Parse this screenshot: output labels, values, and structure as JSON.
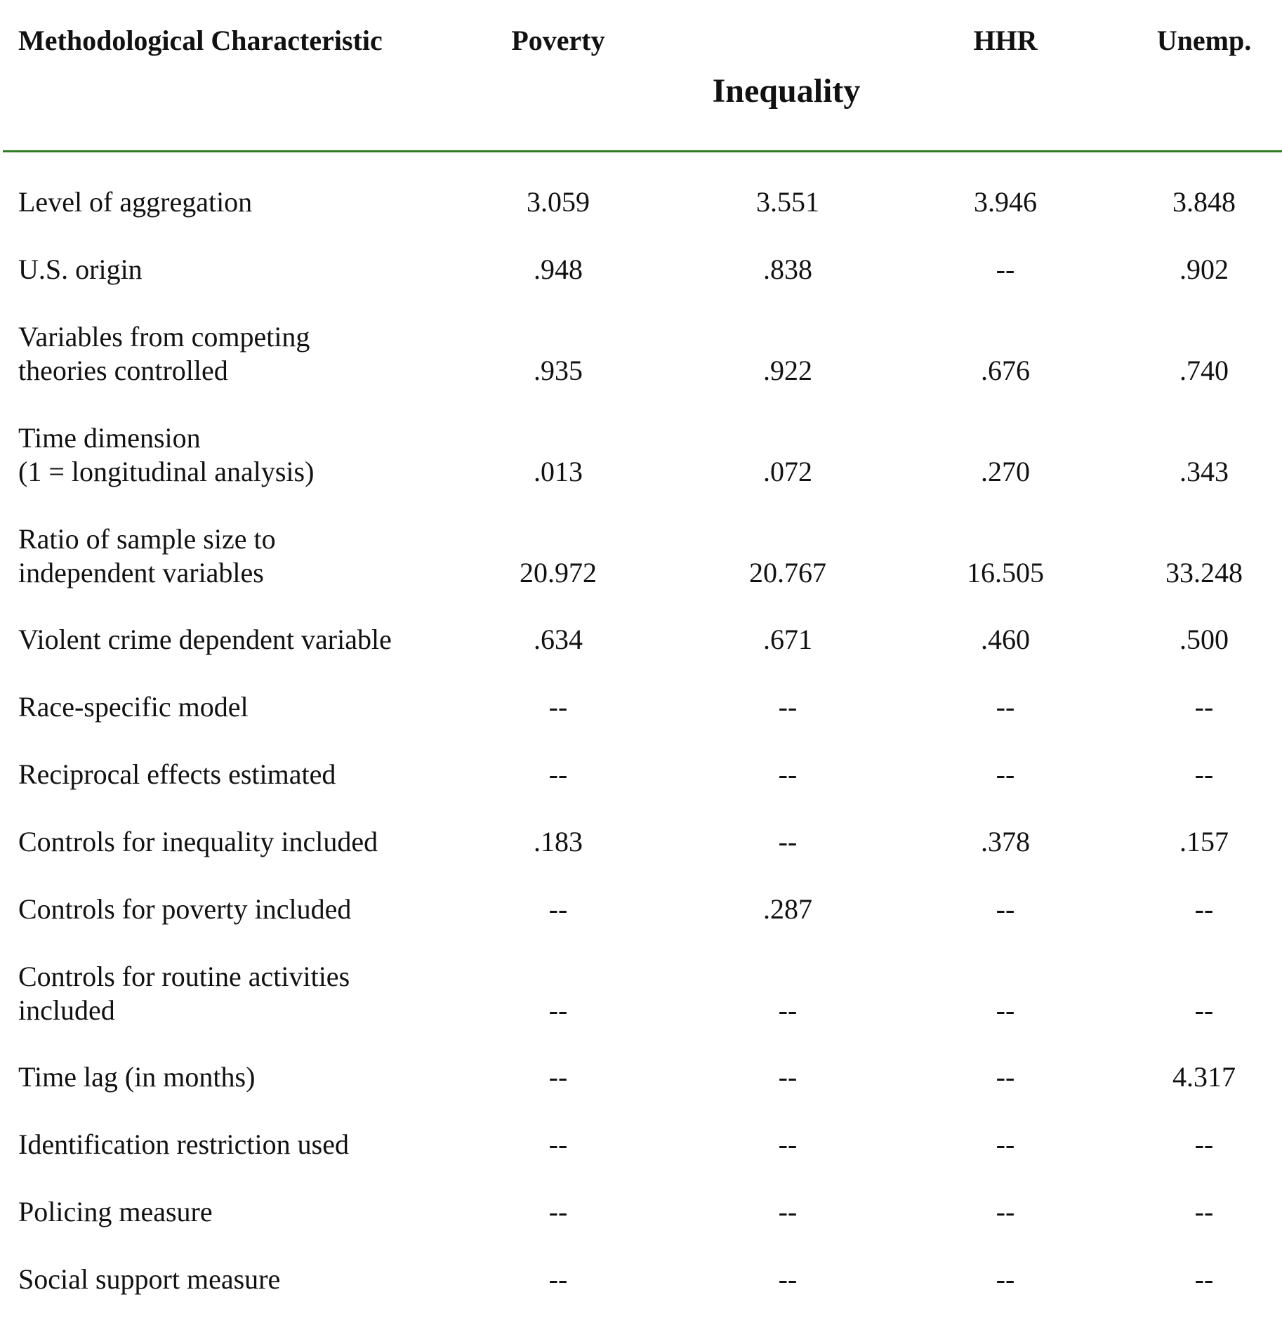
{
  "header": {
    "method": "Methodological Characteristic",
    "poverty": "Poverty",
    "inequality": "Inequality",
    "hhr": "HHR",
    "unemp": "Unemp."
  },
  "rows": [
    {
      "label": [
        "Level of aggregation"
      ],
      "values": [
        "3.059",
        "3.551",
        "3.946",
        "3.848"
      ]
    },
    {
      "label": [
        "U.S. origin"
      ],
      "values": [
        ".948",
        ".838",
        "--",
        ".902"
      ]
    },
    {
      "label": [
        "Variables from competing",
        "theories controlled"
      ],
      "values": [
        ".935",
        ".922",
        ".676",
        ".740"
      ]
    },
    {
      "label": [
        "Time dimension",
        "(1 = longitudinal analysis)"
      ],
      "values": [
        ".013",
        ".072",
        ".270",
        ".343"
      ]
    },
    {
      "label": [
        "Ratio of sample size to",
        "independent variables"
      ],
      "values": [
        "20.972",
        "20.767",
        "16.505",
        "33.248"
      ]
    },
    {
      "label": [
        "Violent crime dependent variable"
      ],
      "values": [
        ".634",
        ".671",
        ".460",
        ".500"
      ]
    },
    {
      "label": [
        "Race-specific model"
      ],
      "values": [
        "--",
        "--",
        "--",
        "--"
      ]
    },
    {
      "label": [
        "Reciprocal effects estimated"
      ],
      "values": [
        "--",
        "--",
        "--",
        "--"
      ]
    },
    {
      "label": [
        "Controls for inequality included"
      ],
      "values": [
        ".183",
        "--",
        ".378",
        ".157"
      ]
    },
    {
      "label": [
        "Controls for poverty included"
      ],
      "values": [
        "--",
        ".287",
        "--",
        "--"
      ]
    },
    {
      "label": [
        "Controls for routine activities",
        "included"
      ],
      "values": [
        "--",
        "--",
        "--",
        "--"
      ]
    },
    {
      "label": [
        "Time lag (in months)"
      ],
      "values": [
        "--",
        "--",
        "--",
        "4.317"
      ]
    },
    {
      "label": [
        "Identification restriction used"
      ],
      "values": [
        "--",
        "--",
        "--",
        "--"
      ]
    },
    {
      "label": [
        "Policing measure"
      ],
      "values": [
        "--",
        "--",
        "--",
        "--"
      ]
    },
    {
      "label": [
        "Social support measure"
      ],
      "values": [
        "--",
        "--",
        "--",
        "--"
      ]
    }
  ]
}
